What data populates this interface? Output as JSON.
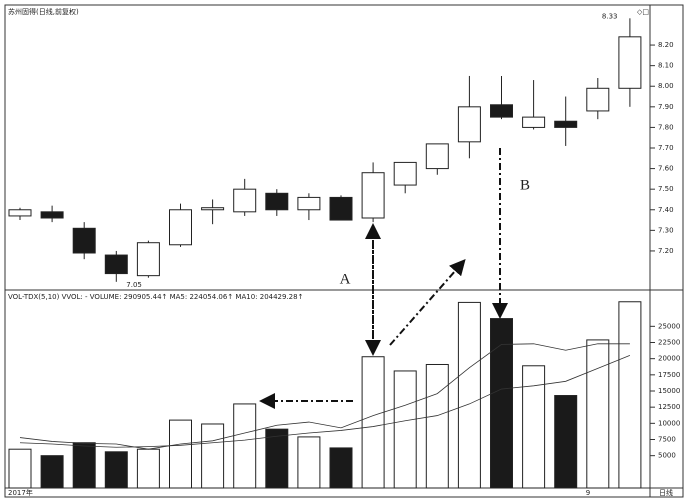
{
  "chart_data": [
    {
      "type": "candlestick",
      "title": "苏州固得(日线,前复权)",
      "categories": [
        "2017年",
        null,
        null,
        null,
        null,
        null,
        null,
        null,
        null,
        null,
        null,
        null,
        null,
        null,
        null,
        null,
        null,
        null,
        "9",
        null
      ],
      "opens": [
        7.37,
        7.39,
        7.31,
        7.18,
        7.08,
        7.23,
        7.4,
        7.39,
        7.48,
        7.4,
        7.46,
        7.36,
        7.52,
        7.6,
        7.73,
        7.91,
        7.8,
        7.83,
        7.88,
        7.99
      ],
      "highs": [
        7.41,
        7.42,
        7.34,
        7.2,
        7.25,
        7.43,
        7.45,
        7.55,
        7.5,
        7.48,
        7.47,
        7.63,
        7.63,
        7.72,
        8.05,
        8.05,
        8.03,
        7.95,
        8.04,
        8.33
      ],
      "lows": [
        7.35,
        7.34,
        7.16,
        7.05,
        7.07,
        7.22,
        7.33,
        7.37,
        7.37,
        7.35,
        7.35,
        7.34,
        7.48,
        7.57,
        7.65,
        7.84,
        7.79,
        7.71,
        7.84,
        7.9
      ],
      "closes": [
        7.4,
        7.36,
        7.19,
        7.09,
        7.24,
        7.4,
        7.41,
        7.5,
        7.4,
        7.46,
        7.35,
        7.58,
        7.63,
        7.72,
        7.9,
        7.85,
        7.85,
        7.8,
        7.99,
        8.24
      ],
      "up_color": "#ffffff",
      "down_color": "#1a1a1a",
      "ylim": [
        7.02,
        8.38
      ],
      "yticks": [
        {
          "value": 7.2,
          "label": "7.20"
        },
        {
          "value": 7.3,
          "label": "7.30"
        },
        {
          "value": 7.4,
          "label": "7.40"
        },
        {
          "value": 7.5,
          "label": "7.50"
        },
        {
          "value": 7.6,
          "label": "7.60"
        },
        {
          "value": 7.7,
          "label": "7.70"
        },
        {
          "value": 7.8,
          "label": "7.80"
        },
        {
          "value": 7.9,
          "label": "7.90"
        },
        {
          "value": 8.0,
          "label": "8.00"
        },
        {
          "value": 8.1,
          "label": "8.10"
        },
        {
          "value": 8.2,
          "label": "8.20"
        }
      ],
      "annotations": [
        "A",
        "B"
      ]
    },
    {
      "type": "volume",
      "subtitle": "VOL-TDX(5,10)  VVOL: -  VOLUME: 290905.44↑  MA5: 224054.06↑  MA10: 204429.28↑",
      "volumes": [
        6000,
        5000,
        7000,
        5600,
        6000,
        10500,
        9900,
        13000,
        9100,
        7900,
        6200,
        20300,
        18100,
        19100,
        28700,
        26200,
        18900,
        14300,
        22900,
        28800
      ],
      "bar_colors": [
        "#ffffff",
        "#1a1a1a",
        "#1a1a1a",
        "#1a1a1a",
        "#ffffff",
        "#ffffff",
        "#ffffff",
        "#ffffff",
        "#1a1a1a",
        "#ffffff",
        "#1a1a1a",
        "#ffffff",
        "#ffffff",
        "#ffffff",
        "#ffffff",
        "#1a1a1a",
        "#ffffff",
        "#1a1a1a",
        "#ffffff",
        "#ffffff"
      ],
      "ma5": [
        7800,
        7200,
        6900,
        6800,
        6000,
        6800,
        7300,
        8500,
        9700,
        10200,
        9300,
        11200,
        12800,
        14600,
        18600,
        22200,
        22300,
        21300,
        22300,
        22300
      ],
      "ma10": [
        7000,
        6800,
        6500,
        6300,
        6400,
        6600,
        7000,
        7400,
        8000,
        8500,
        8900,
        9500,
        10400,
        11200,
        13000,
        15300,
        15800,
        16500,
        18500,
        20500
      ],
      "line_color": "#333333",
      "ylim": [
        0,
        30000
      ],
      "yticks": [
        5000,
        7500,
        10000,
        12500,
        15000,
        17500,
        20000,
        22500,
        25000
      ],
      "period_label": "日线"
    }
  ]
}
